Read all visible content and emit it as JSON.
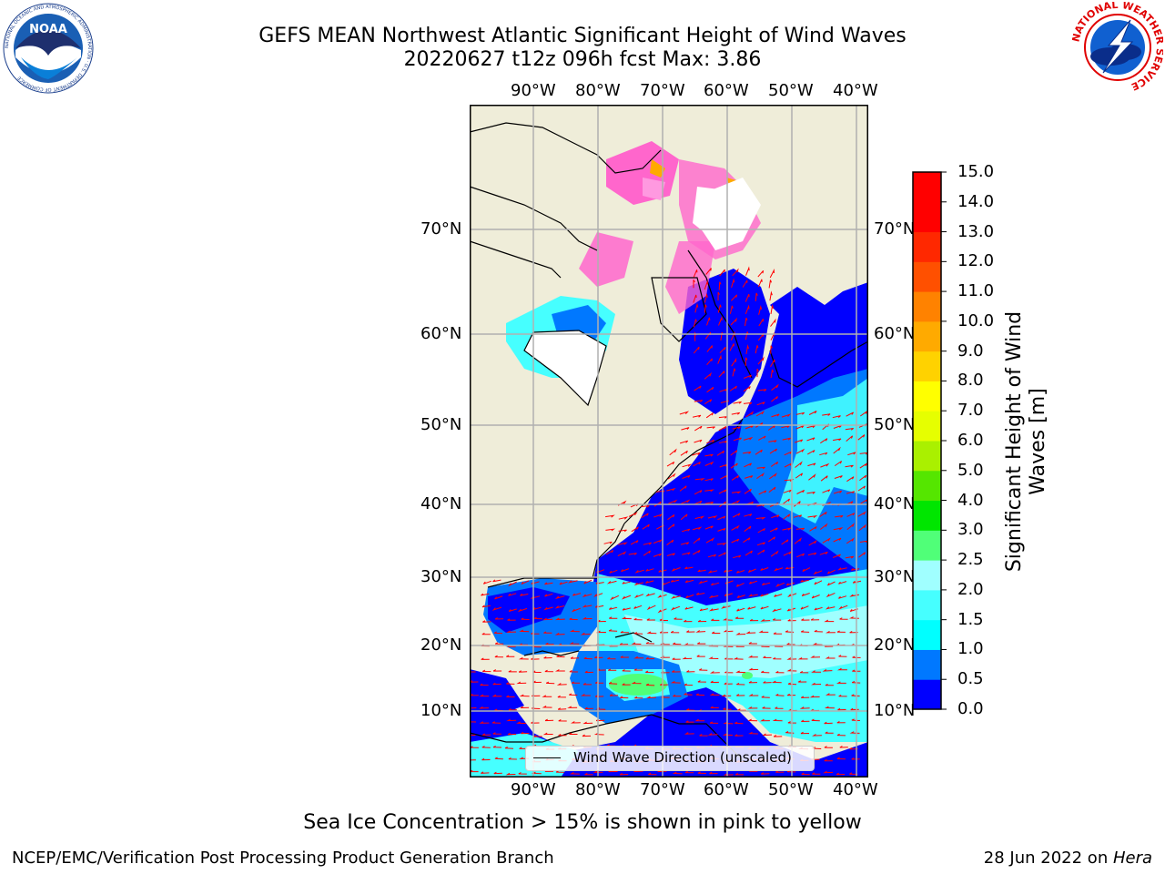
{
  "header": {
    "title_line1": "GEFS MEAN Northwest Atlantic Significant Height of Wind Waves",
    "title_line2": "20220627 t12z 096h fcst   Max: 3.86"
  },
  "logos": {
    "left": "NOAA",
    "left_ring": "NATIONAL OCEANIC AND ATMOSPHERIC ADMINISTRATION · U.S. DEPARTMENT OF COMMERCE",
    "right_ring": "NATIONAL WEATHER SERVICE"
  },
  "map": {
    "lon_labels": [
      "90°W",
      "80°W",
      "70°W",
      "60°W",
      "50°W",
      "40°W"
    ],
    "lat_labels": [
      "70°N",
      "60°N",
      "50°N",
      "40°N",
      "30°N",
      "20°N",
      "10°N"
    ],
    "legend_label": "Wind Wave Direction (unscaled)",
    "colors": {
      "land": "#efedd9",
      "ice_pink": "#ff66cc",
      "arrow": "#ff0000",
      "grid": "#b0b0b0"
    }
  },
  "colorbar": {
    "title": "Significant Height of Wind Waves [m]",
    "ticks": [
      "0.0",
      "0.5",
      "1.0",
      "1.5",
      "2.0",
      "2.5",
      "3.0",
      "4.0",
      "5.0",
      "6.0",
      "7.0",
      "8.0",
      "9.0",
      "10.0",
      "11.0",
      "12.0",
      "13.0",
      "14.0",
      "15.0"
    ],
    "colors": [
      "#0000ff",
      "#0078ff",
      "#00ffff",
      "#46ffff",
      "#a0ffff",
      "#50ff78",
      "#00e600",
      "#55e600",
      "#aaf000",
      "#e6ff00",
      "#ffff00",
      "#ffd200",
      "#ffaa00",
      "#ff8200",
      "#ff5000",
      "#ff2800",
      "#ff0000",
      "#ff0000"
    ]
  },
  "footer": {
    "note": "Sea Ice Concentration > 15% is shown in pink to yellow",
    "left": "NCEP/EMC/Verification Post Processing Product Generation Branch",
    "right_date": "28 Jun 2022 on ",
    "right_host": "Hera"
  }
}
